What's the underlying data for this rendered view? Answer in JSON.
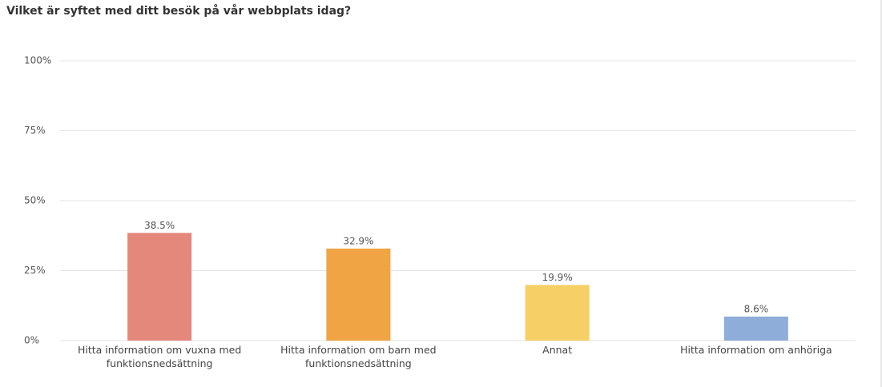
{
  "chart_data": {
    "type": "bar",
    "title": "Vilket är syftet med ditt besök på vår webbplats idag?",
    "categories": [
      "Hitta information om vuxna med funktionsnedsättning",
      "Hitta information om barn med funktionsnedsättning",
      "Annat",
      "Hitta information om anhöriga"
    ],
    "values": [
      38.5,
      32.9,
      19.9,
      8.6
    ],
    "value_labels": [
      "38.5%",
      "32.9%",
      "19.9%",
      "8.6%"
    ],
    "colors": [
      "#e4887b",
      "#f0a444",
      "#f6d066",
      "#8fadd9"
    ],
    "ylim": [
      0,
      100
    ],
    "yticks": [
      {
        "value": 0,
        "label": "0%"
      },
      {
        "value": 25,
        "label": "25%"
      },
      {
        "value": 50,
        "label": "50%"
      },
      {
        "value": 75,
        "label": "75%"
      },
      {
        "value": 100,
        "label": "100%"
      }
    ],
    "grid": true
  }
}
